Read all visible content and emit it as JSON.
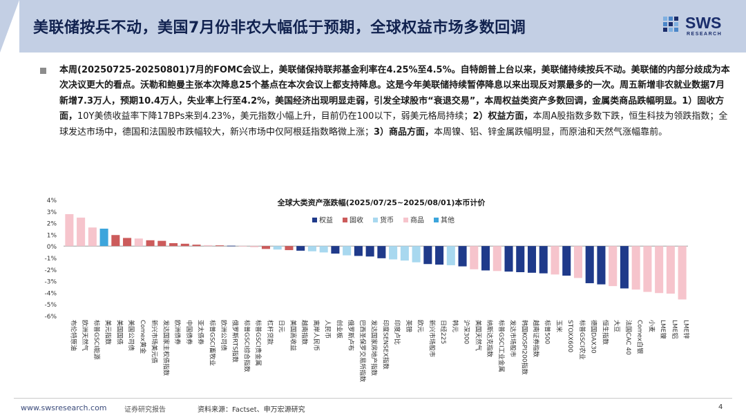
{
  "header": {
    "title": "美联储按兵不动，美国7月份非农大幅低于预期，全球权益市场多数回调",
    "logo_text": "SWS",
    "logo_sub": "RESEARCH"
  },
  "body": {
    "segments": [
      {
        "t": "本周(20250725-20250801)7月的FOMC会议上，美联储保持联邦基金利率在4.25%至4.5%。自特朗普上台以来，美联储持续按兵不动。美联储的内部分歧成为本次决议更大的看点。沃勒和鲍曼主张本次降息25个基点在本次会议上都支持降息。这是今年美联储持续暂停降息以来出现反对票最多的一次。周五新增非农就业数据7月新增7.3万人，预期10.4万人，失业率上行至4.2%，美国经济出现明显走弱，引发全球股市“衰退交易”，本周权益类资产多数回调，金属类商品跌幅明显。1）固收方面，",
        "b": true
      },
      {
        "t": "10Y美债收益率下降17BPs来到4.23%，美元指数小幅上升，目前仍在100以下，弱美元格局持续；",
        "b": false
      },
      {
        "t": "2）权益方面，",
        "b": true
      },
      {
        "t": "本周A股指数多数下跌，恒生科技为领跌指数；全球发达市场中，德国和法国股市跌幅较大，新兴市场中仅阿根廷指数略微上涨；",
        "b": false
      },
      {
        "t": "3）商品方面，",
        "b": true
      },
      {
        "t": "本周镍、铝、锌金属跌幅明显，而原油和天然气涨幅靠前。",
        "b": false
      }
    ]
  },
  "chart_data": {
    "type": "bar",
    "title": "全球大类资产涨跌幅(2025/07/25~2025/08/01)本币计价",
    "ylim": [
      -6,
      4
    ],
    "yticks": [
      "4%",
      "3%",
      "2%",
      "1%",
      "0%",
      "-1%",
      "-2%",
      "-3%",
      "-4%",
      "-5%",
      "-6%"
    ],
    "legend": [
      {
        "name": "权益",
        "color": "#1f3a8a"
      },
      {
        "name": "固收",
        "color": "#cc5b5b"
      },
      {
        "name": "货币",
        "color": "#a8d8ef"
      },
      {
        "name": "商品",
        "color": "#f6c4cc"
      },
      {
        "name": "其他",
        "color": "#3ca5dc"
      }
    ],
    "colors": {
      "权益": "#1f3a8a",
      "固收": "#cc5b5b",
      "货币": "#a8d8ef",
      "商品": "#f6c4cc",
      "其他": "#3ca5dc"
    },
    "categories": [
      "布伦特原油",
      "欧洲天然气",
      "标普GSCI能源",
      "美元指数",
      "美国国债",
      "美国公司债",
      "Comex黄金",
      "新兴市场美元债",
      "发达国家主权债指数",
      "欧洲债券",
      "中国债券",
      "亚太债券",
      "标普GSCI畜牧业",
      "欧洲公司债",
      "俄罗斯RTS指数",
      "标普GSCI综合指数",
      "标普GSCI贵金属",
      "杠杆贷款",
      "日元",
      "美国高收益",
      "越南指数",
      "离岸人民币",
      "人民币",
      "创业板",
      "俄罗斯卢布",
      "巴西圣保罗交易所指数",
      "发达国家房地产指数",
      "印度SENSEX指数",
      "印度卢比",
      "英镑",
      "欧元",
      "新兴市场股市",
      "日经225",
      "韩元",
      "沪深300",
      "美国天然气",
      "纳斯达克指数",
      "标普GSCI工业金属",
      "发达市场股市",
      "韩国KOSPI200指数",
      "越南证券指数",
      "标普500",
      "玉米",
      "STOXX600",
      "标普GSCI农业",
      "德国DAX30",
      "恒生指数",
      "大豆",
      "法国CAC 40",
      "Comex白银",
      "小麦",
      "LME镍",
      "LME铝",
      "LME锌"
    ],
    "groups": [
      "商品",
      "商品",
      "商品",
      "其他",
      "固收",
      "固收",
      "商品",
      "固收",
      "固收",
      "固收",
      "固收",
      "固收",
      "商品",
      "固收",
      "权益",
      "商品",
      "商品",
      "固收",
      "货币",
      "固收",
      "权益",
      "货币",
      "货币",
      "权益",
      "货币",
      "权益",
      "权益",
      "权益",
      "货币",
      "货币",
      "货币",
      "权益",
      "权益",
      "货币",
      "权益",
      "商品",
      "权益",
      "商品",
      "权益",
      "权益",
      "权益",
      "权益",
      "商品",
      "权益",
      "商品",
      "权益",
      "权益",
      "商品",
      "权益",
      "商品",
      "商品",
      "商品",
      "商品",
      "商品"
    ],
    "values": [
      2.75,
      2.45,
      1.6,
      1.5,
      0.95,
      0.7,
      0.65,
      0.5,
      0.45,
      0.25,
      0.2,
      0.12,
      0.08,
      0.06,
      0.03,
      -0.05,
      -0.1,
      -0.25,
      -0.3,
      -0.35,
      -0.4,
      -0.45,
      -0.55,
      -0.65,
      -0.8,
      -0.85,
      -0.9,
      -1.05,
      -1.15,
      -1.25,
      -1.4,
      -1.55,
      -1.6,
      -1.65,
      -1.75,
      -2.0,
      -2.1,
      -2.15,
      -2.2,
      -2.25,
      -2.3,
      -2.35,
      -2.45,
      -2.55,
      -2.75,
      -3.2,
      -3.3,
      -3.45,
      -3.65,
      -3.75,
      -3.95,
      -4.05,
      -4.1,
      -4.6
    ]
  },
  "footer": {
    "url": "www.swsresearch.com",
    "report": "证券研究报告",
    "source": "资料来源：Factset、申万宏源研究",
    "page": "4"
  }
}
